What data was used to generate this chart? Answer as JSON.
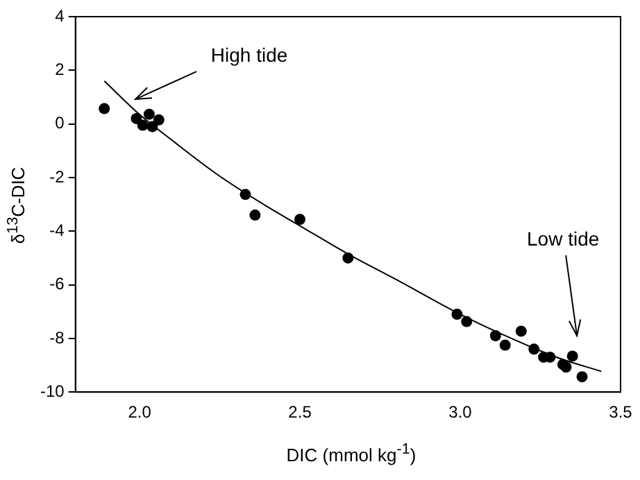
{
  "chart_data": {
    "type": "scatter",
    "xlabel": "DIC (mmol kg$^{-1}$)",
    "ylabel": "δ$^{13}$C-DIC",
    "xlim": [
      1.8,
      3.5
    ],
    "xticks": [
      {
        "value": 2,
        "label": "2.0"
      },
      {
        "value": 2.5,
        "label": "2.5"
      },
      {
        "value": 3,
        "label": "3.0"
      },
      {
        "value": 3.5,
        "label": "3.5"
      }
    ],
    "ylim": [
      -10,
      4
    ],
    "yticks": [
      -10,
      -8,
      -6,
      -4,
      -2,
      0,
      2,
      4
    ],
    "grid": false,
    "legend": false,
    "series": [
      {
        "color": "#000000",
        "marker": "circle",
        "x": [
          1.89,
          1.99,
          2.03,
          2.01,
          2.04,
          2.06,
          2.33,
          2.36,
          2.5,
          2.65,
          2.99,
          3.02,
          3.11,
          3.14,
          3.19,
          3.23,
          3.26,
          3.28,
          3.35,
          3.32,
          3.33,
          3.38
        ],
        "values": [
          0.57,
          0.2,
          0.36,
          -0.05,
          -0.1,
          0.15,
          -2.63,
          -3.4,
          -3.56,
          -5.0,
          -7.1,
          -7.37,
          -7.9,
          -8.25,
          -7.73,
          -8.4,
          -8.7,
          -8.7,
          -8.66,
          -8.97,
          -9.07,
          -9.43
        ]
      },
      {
        "type": "line",
        "color": "#000000",
        "marker": "none",
        "line_style": "solid",
        "x": [
          1.89,
          2.0,
          2.1,
          2.25,
          2.4,
          2.5,
          2.65,
          2.8,
          3.0,
          3.15,
          3.3,
          3.44
        ],
        "values": [
          1.6,
          0.35,
          -0.6,
          -1.95,
          -3.1,
          -3.8,
          -4.85,
          -5.8,
          -7.1,
          -7.95,
          -8.7,
          -9.23
        ]
      }
    ],
    "annotations": [
      "High tide",
      "Low tide"
    ]
  }
}
